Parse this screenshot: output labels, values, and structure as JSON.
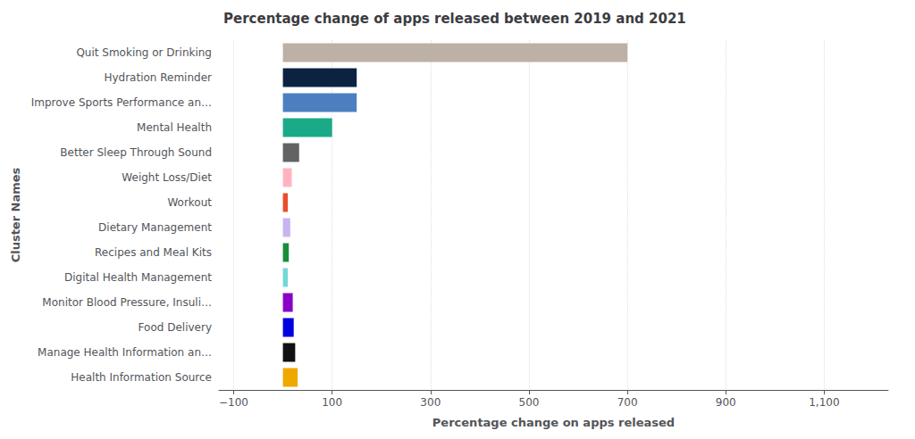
{
  "chart_data": {
    "type": "bar",
    "orientation": "horizontal",
    "title": "Percentage change of apps released between 2019 and 2021",
    "xlabel": "Percentage change on apps released",
    "ylabel": "Cluster Names",
    "categories": [
      "Quit Smoking or Drinking",
      "Hydration Reminder",
      "Improve Sports Performance an…",
      "Mental Health",
      "Better Sleep Through Sound",
      "Weight Loss/Diet",
      "Workout",
      "Dietary Management",
      "Recipes and Meal Kits",
      "Digital Health Management",
      "Monitor Blood Pressure, Insuli…",
      "Food Delivery",
      "Manage Health Information an…",
      "Health Information Source"
    ],
    "values": [
      700,
      150,
      150,
      100,
      33,
      18,
      10,
      15,
      12,
      10,
      20,
      22,
      25,
      30
    ],
    "colors": [
      "#bdb0a4",
      "#0d2240",
      "#4c7fc0",
      "#1aaa88",
      "#636363",
      "#ffb3c1",
      "#e8502a",
      "#c8b4f0",
      "#1a8c3a",
      "#72d8d8",
      "#8b00c8",
      "#0000e0",
      "#111111",
      "#f0a800"
    ],
    "xlim": [
      -130,
      1230
    ],
    "xticks": [
      {
        "value": -100,
        "label": "−100"
      },
      100,
      300,
      500,
      700,
      900,
      {
        "value": 1100,
        "label": "1,100"
      }
    ],
    "grid": true
  }
}
